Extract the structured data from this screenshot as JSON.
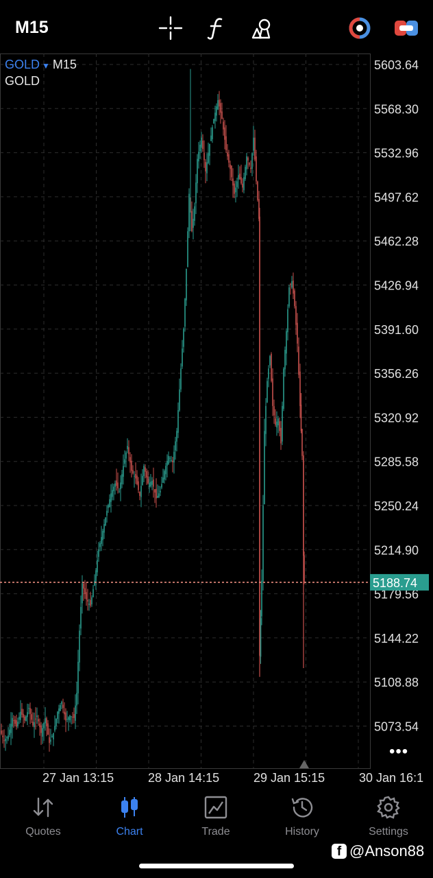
{
  "toolbar": {
    "timeframe": "M15",
    "icons": [
      "crosshair-icon",
      "indicators-icon",
      "objects-icon",
      "trade-panel-icon",
      "one-click-trading-icon"
    ]
  },
  "symbol": {
    "name": "GOLD",
    "timeframe": "M15",
    "description": "GOLD"
  },
  "price_axis": [
    "5603.64",
    "5568.30",
    "5532.96",
    "5497.62",
    "5462.28",
    "5426.94",
    "5391.60",
    "5356.26",
    "5320.92",
    "5285.58",
    "5250.24",
    "5214.90",
    "5179.56",
    "5144.22",
    "5108.88",
    "5073.54"
  ],
  "current_price": "5188.74",
  "time_axis": [
    "27 Jan 13:15",
    "28 Jan 14:15",
    "29 Jan 15:15",
    "30 Jan 16:1"
  ],
  "colors": {
    "bull": "#2a9d8f",
    "bear": "#c8514d",
    "price_line": "#e88a7d",
    "price_tag": "#2a9d8f",
    "accent": "#3c82f0"
  },
  "chart_data": {
    "type": "candlestick",
    "symbol": "GOLD",
    "timeframe": "M15",
    "y_range": [
      5056,
      5620
    ],
    "close_path": [
      [
        0,
        5070
      ],
      [
        6,
        5062
      ],
      [
        12,
        5066
      ],
      [
        18,
        5080
      ],
      [
        24,
        5073
      ],
      [
        30,
        5085
      ],
      [
        36,
        5078
      ],
      [
        42,
        5088
      ],
      [
        48,
        5074
      ],
      [
        54,
        5082
      ],
      [
        60,
        5068
      ],
      [
        66,
        5080
      ],
      [
        72,
        5060
      ],
      [
        78,
        5068
      ],
      [
        84,
        5085
      ],
      [
        90,
        5093
      ],
      [
        96,
        5078
      ],
      [
        102,
        5082
      ],
      [
        108,
        5080
      ],
      [
        112,
        5100
      ],
      [
        116,
        5150
      ],
      [
        120,
        5188
      ],
      [
        126,
        5175
      ],
      [
        132,
        5170
      ],
      [
        138,
        5190
      ],
      [
        144,
        5215
      ],
      [
        150,
        5230
      ],
      [
        156,
        5246
      ],
      [
        162,
        5260
      ],
      [
        168,
        5268
      ],
      [
        174,
        5262
      ],
      [
        180,
        5282
      ],
      [
        186,
        5298
      ],
      [
        192,
        5278
      ],
      [
        198,
        5272
      ],
      [
        204,
        5258
      ],
      [
        210,
        5282
      ],
      [
        216,
        5268
      ],
      [
        222,
        5270
      ],
      [
        228,
        5256
      ],
      [
        234,
        5262
      ],
      [
        240,
        5278
      ],
      [
        246,
        5290
      ],
      [
        252,
        5285
      ],
      [
        258,
        5310
      ],
      [
        264,
        5360
      ],
      [
        268,
        5392
      ],
      [
        272,
        5440
      ],
      [
        276,
        5500
      ],
      [
        280,
        5470
      ],
      [
        284,
        5490
      ],
      [
        288,
        5528
      ],
      [
        294,
        5545
      ],
      [
        300,
        5518
      ],
      [
        306,
        5540
      ],
      [
        312,
        5560
      ],
      [
        318,
        5575
      ],
      [
        324,
        5560
      ],
      [
        330,
        5535
      ],
      [
        336,
        5520
      ],
      [
        342,
        5500
      ],
      [
        348,
        5515
      ],
      [
        354,
        5505
      ],
      [
        360,
        5530
      ],
      [
        366,
        5520
      ],
      [
        370,
        5545
      ],
      [
        374,
        5510
      ],
      [
        378,
        5480
      ],
      [
        379,
        5130
      ],
      [
        382,
        5190
      ],
      [
        386,
        5310
      ],
      [
        390,
        5350
      ],
      [
        394,
        5370
      ],
      [
        398,
        5330
      ],
      [
        402,
        5315
      ],
      [
        406,
        5320
      ],
      [
        410,
        5300
      ],
      [
        414,
        5360
      ],
      [
        418,
        5390
      ],
      [
        422,
        5425
      ],
      [
        426,
        5430
      ],
      [
        430,
        5410
      ],
      [
        434,
        5380
      ],
      [
        438,
        5330
      ],
      [
        441,
        5290
      ],
      [
        443,
        5210
      ],
      [
        444,
        5188.74
      ]
    ]
  },
  "nav": [
    {
      "label": "Quotes",
      "icon": "quotes-icon"
    },
    {
      "label": "Chart",
      "icon": "chart-icon",
      "active": true
    },
    {
      "label": "Trade",
      "icon": "trade-icon"
    },
    {
      "label": "History",
      "icon": "history-icon"
    },
    {
      "label": "Settings",
      "icon": "settings-icon"
    }
  ],
  "watermark": {
    "handle": "@Anson88",
    "icon": "facebook-icon"
  }
}
